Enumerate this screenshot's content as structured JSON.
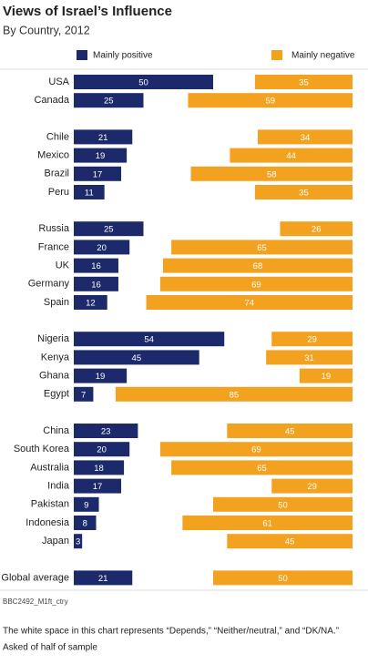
{
  "chart_data": {
    "type": "diverging-bar",
    "title": "Views of Israel’s Influence",
    "subtitle": "By Country, 2012",
    "categories": [
      "USA",
      "Canada",
      "Chile",
      "Mexico",
      "Brazil",
      "Peru",
      "Russia",
      "France",
      "UK",
      "Germany",
      "Spain",
      "Nigeria",
      "Kenya",
      "Ghana",
      "Egypt",
      "China",
      "South Korea",
      "Australia",
      "India",
      "Pakistan",
      "Indonesia",
      "Japan",
      "Global average"
    ],
    "series": [
      {
        "name": "Mainly positive",
        "color": "#1c2a6b",
        "values": [
          50,
          25,
          21,
          19,
          17,
          11,
          25,
          20,
          16,
          16,
          12,
          54,
          45,
          19,
          7,
          23,
          20,
          18,
          17,
          9,
          8,
          3,
          21
        ]
      },
      {
        "name": "Mainly negative",
        "color": "#f3a21f",
        "values": [
          35,
          59,
          34,
          44,
          58,
          35,
          26,
          65,
          68,
          69,
          74,
          29,
          31,
          19,
          85,
          45,
          69,
          65,
          29,
          50,
          61,
          45,
          50
        ]
      }
    ],
    "source": "BBC2492_M1ft_ctry",
    "notes": [
      "The white space in this chart represents “Depends,” “Neither/neutral,” and “DK/NA.”",
      "Asked of half of sample"
    ]
  }
}
